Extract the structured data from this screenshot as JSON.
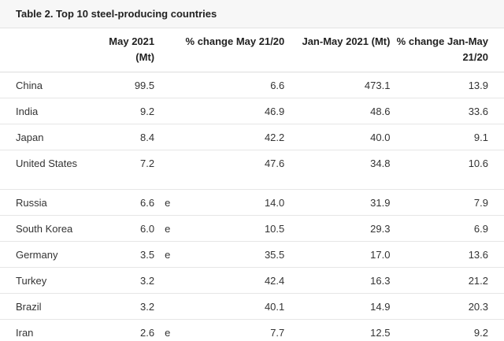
{
  "table": {
    "caption": "Table 2. Top 10 steel-producing countries",
    "headers": {
      "country": "",
      "may": "May 2021 (Mt)",
      "note": "",
      "pct_may": "% change May 21/20",
      "jan_may": "Jan-May 2021 (Mt)",
      "pct_jan_may": "% change Jan-May 21/20"
    },
    "rows": [
      {
        "country": "China",
        "may": "99.5",
        "note": "",
        "pct_may": "6.6",
        "jan_may": "473.1",
        "pct_jan_may": "13.9"
      },
      {
        "country": "India",
        "may": "9.2",
        "note": "",
        "pct_may": "46.9",
        "jan_may": "48.6",
        "pct_jan_may": "33.6"
      },
      {
        "country": "Japan",
        "may": "8.4",
        "note": "",
        "pct_may": "42.2",
        "jan_may": "40.0",
        "pct_jan_may": "9.1"
      },
      {
        "country": "United States",
        "may": "7.2",
        "note": "",
        "pct_may": "47.6",
        "jan_may": "34.8",
        "pct_jan_may": "10.6"
      },
      {
        "country": "Russia",
        "may": "6.6",
        "note": "e",
        "pct_may": "14.0",
        "jan_may": "31.9",
        "pct_jan_may": "7.9"
      },
      {
        "country": "South Korea",
        "may": "6.0",
        "note": "e",
        "pct_may": "10.5",
        "jan_may": "29.3",
        "pct_jan_may": "6.9"
      },
      {
        "country": "Germany",
        "may": "3.5",
        "note": "e",
        "pct_may": "35.5",
        "jan_may": "17.0",
        "pct_jan_may": "13.6"
      },
      {
        "country": "Turkey",
        "may": "3.2",
        "note": "",
        "pct_may": "42.4",
        "jan_may": "16.3",
        "pct_jan_may": "21.2"
      },
      {
        "country": "Brazil",
        "may": "3.2",
        "note": "",
        "pct_may": "40.1",
        "jan_may": "14.9",
        "pct_jan_may": "20.3"
      },
      {
        "country": "Iran",
        "may": "2.6",
        "note": "e",
        "pct_may": "7.7",
        "jan_may": "12.5",
        "pct_jan_may": "9.2"
      }
    ]
  }
}
